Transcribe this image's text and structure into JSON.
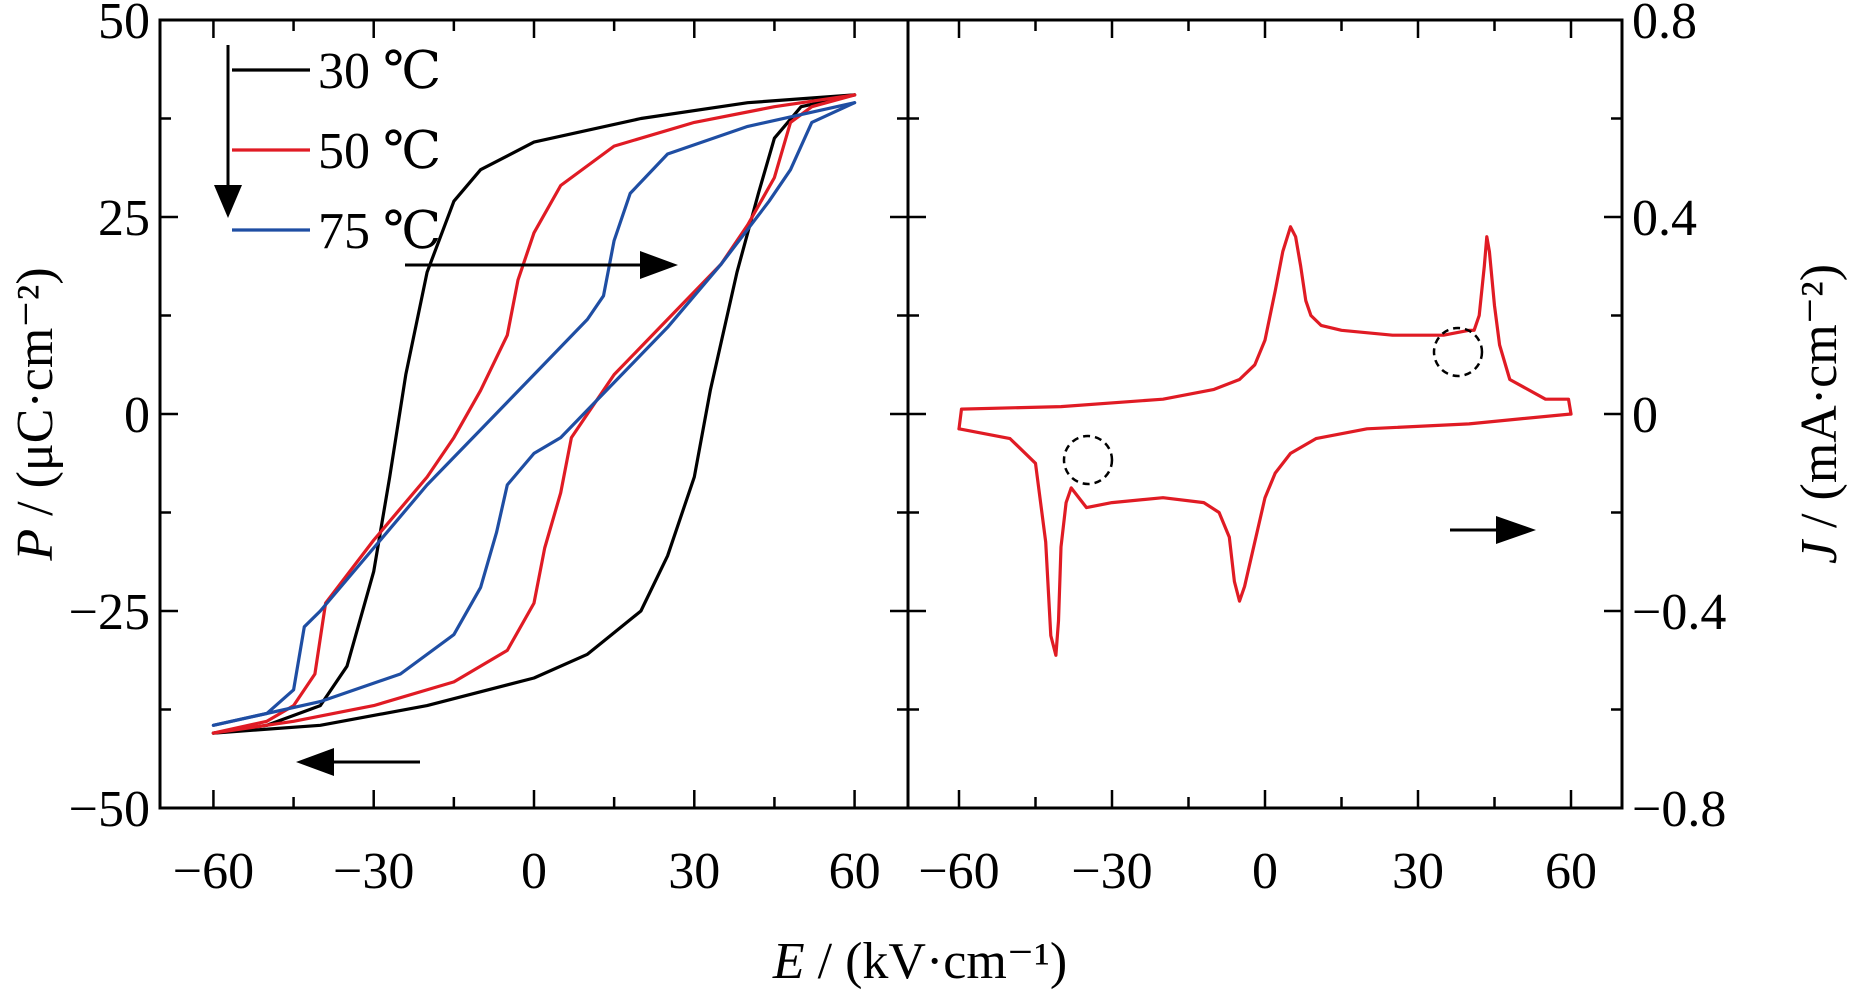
{
  "chart_data": [
    {
      "type": "line",
      "panel": "left",
      "xlabel_var": "E",
      "xlabel_unit": " / (kV·cm⁻¹)",
      "ylabel_var": "P",
      "ylabel_unit": " / (μC·cm⁻²)",
      "xlim": [
        -70,
        70
      ],
      "ylim": [
        -50,
        50
      ],
      "x_ticks": [
        -60,
        -30,
        0,
        30,
        60
      ],
      "x_tick_labels": [
        "−60",
        "−30",
        "0",
        "30",
        "60"
      ],
      "y_ticks": [
        -50,
        -25,
        0,
        25,
        50
      ],
      "y_tick_labels": [
        "−50",
        "−25",
        "0",
        "25",
        "50"
      ],
      "grid": false,
      "legend_position": "top-left",
      "series": [
        {
          "name": "30 ℃",
          "color": "#000000",
          "upper": [
            [
              -60,
              -40.5
            ],
            [
              -50,
              -39.5
            ],
            [
              -40,
              -37
            ],
            [
              -35,
              -32
            ],
            [
              -30,
              -20
            ],
            [
              -27,
              -8
            ],
            [
              -24,
              5
            ],
            [
              -20,
              18
            ],
            [
              -15,
              27
            ],
            [
              -10,
              31
            ],
            [
              0,
              34.5
            ],
            [
              20,
              37.5
            ],
            [
              40,
              39.5
            ],
            [
              60,
              40.5
            ]
          ],
          "lower": [
            [
              60,
              40.5
            ],
            [
              50,
              39
            ],
            [
              45,
              35
            ],
            [
              42,
              28
            ],
            [
              38,
              18
            ],
            [
              33,
              3
            ],
            [
              30,
              -8
            ],
            [
              25,
              -18
            ],
            [
              20,
              -25
            ],
            [
              10,
              -30.5
            ],
            [
              0,
              -33.5
            ],
            [
              -20,
              -37
            ],
            [
              -40,
              -39.5
            ],
            [
              -60,
              -40.5
            ]
          ]
        },
        {
          "name": "50 ℃",
          "color": "#e01b24",
          "upper": [
            [
              -60,
              -40.5
            ],
            [
              -50,
              -39
            ],
            [
              -45,
              -37
            ],
            [
              -41,
              -33
            ],
            [
              -39,
              -24
            ],
            [
              -30,
              -16
            ],
            [
              -20,
              -8
            ],
            [
              -15,
              -3
            ],
            [
              -10,
              3
            ],
            [
              -5,
              10
            ],
            [
              -3,
              17
            ],
            [
              0,
              23
            ],
            [
              5,
              29
            ],
            [
              15,
              34
            ],
            [
              30,
              37
            ],
            [
              45,
              39
            ],
            [
              60,
              40.5
            ]
          ],
          "lower": [
            [
              60,
              40.5
            ],
            [
              52,
              39
            ],
            [
              48,
              37
            ],
            [
              45,
              30
            ],
            [
              40,
              24
            ],
            [
              35,
              19
            ],
            [
              25,
              12
            ],
            [
              15,
              5
            ],
            [
              10,
              0
            ],
            [
              7,
              -3
            ],
            [
              5,
              -10
            ],
            [
              2,
              -17
            ],
            [
              0,
              -24
            ],
            [
              -5,
              -30
            ],
            [
              -15,
              -34
            ],
            [
              -30,
              -37
            ],
            [
              -45,
              -39
            ],
            [
              -60,
              -40.5
            ]
          ]
        },
        {
          "name": "75 ℃",
          "color": "#1f4ea3",
          "upper": [
            [
              -60,
              -39.5
            ],
            [
              -50,
              -38
            ],
            [
              -45,
              -35
            ],
            [
              -43,
              -27
            ],
            [
              -40,
              -25
            ],
            [
              -30,
              -17
            ],
            [
              -20,
              -9
            ],
            [
              -10,
              -2
            ],
            [
              0,
              5
            ],
            [
              10,
              12
            ],
            [
              13,
              15
            ],
            [
              15,
              22
            ],
            [
              18,
              28
            ],
            [
              25,
              33
            ],
            [
              40,
              36.5
            ],
            [
              60,
              39.5
            ]
          ],
          "lower": [
            [
              60,
              39.5
            ],
            [
              52,
              37
            ],
            [
              48,
              31
            ],
            [
              44,
              27
            ],
            [
              35,
              19
            ],
            [
              25,
              11
            ],
            [
              15,
              4
            ],
            [
              5,
              -3
            ],
            [
              0,
              -5
            ],
            [
              -5,
              -9
            ],
            [
              -7,
              -15
            ],
            [
              -10,
              -22
            ],
            [
              -15,
              -28
            ],
            [
              -25,
              -33
            ],
            [
              -40,
              -36.5
            ],
            [
              -60,
              -39.5
            ]
          ]
        }
      ]
    },
    {
      "type": "line",
      "panel": "right",
      "ylabel_var": "J",
      "ylabel_unit": " / (mA·cm⁻²)",
      "xlim": [
        -70,
        70
      ],
      "ylim": [
        -0.8,
        0.8
      ],
      "x_ticks": [
        -60,
        -30,
        0,
        30,
        60
      ],
      "x_tick_labels": [
        "−60",
        "−30",
        "0",
        "30",
        "60"
      ],
      "y_ticks": [
        -0.8,
        -0.4,
        0,
        0.4,
        0.8
      ],
      "y_tick_labels": [
        "−0.8",
        "−0.4",
        "0",
        "0.4",
        "0.8"
      ],
      "grid": false,
      "series": [
        {
          "name": "50 ℃",
          "color": "#e01b24",
          "upper": [
            [
              -60,
              -0.03
            ],
            [
              -59.5,
              0.01
            ],
            [
              -40,
              0.015
            ],
            [
              -20,
              0.03
            ],
            [
              -10,
              0.05
            ],
            [
              -5,
              0.07
            ],
            [
              -2,
              0.1
            ],
            [
              0,
              0.15
            ],
            [
              2,
              0.25
            ],
            [
              3.5,
              0.33
            ],
            [
              5,
              0.38
            ],
            [
              6,
              0.36
            ],
            [
              7,
              0.3
            ],
            [
              8,
              0.23
            ],
            [
              9,
              0.2
            ],
            [
              11,
              0.18
            ],
            [
              15,
              0.17
            ],
            [
              25,
              0.16
            ],
            [
              35,
              0.16
            ],
            [
              40,
              0.17
            ],
            [
              41,
              0.17
            ],
            [
              42,
              0.2
            ],
            [
              43,
              0.3
            ],
            [
              43.5,
              0.36
            ],
            [
              44,
              0.33
            ],
            [
              45,
              0.22
            ],
            [
              46,
              0.14
            ],
            [
              48,
              0.07
            ],
            [
              55,
              0.03
            ],
            [
              59.5,
              0.03
            ],
            [
              60,
              0.0
            ]
          ],
          "lower": [
            [
              60,
              0.0
            ],
            [
              50,
              -0.01
            ],
            [
              40,
              -0.02
            ],
            [
              20,
              -0.03
            ],
            [
              10,
              -0.05
            ],
            [
              5,
              -0.08
            ],
            [
              2,
              -0.12
            ],
            [
              0,
              -0.17
            ],
            [
              -2,
              -0.26
            ],
            [
              -4,
              -0.35
            ],
            [
              -5,
              -0.38
            ],
            [
              -6,
              -0.34
            ],
            [
              -7,
              -0.25
            ],
            [
              -9,
              -0.2
            ],
            [
              -12,
              -0.18
            ],
            [
              -20,
              -0.17
            ],
            [
              -30,
              -0.18
            ],
            [
              -35,
              -0.19
            ],
            [
              -38,
              -0.15
            ],
            [
              -39,
              -0.18
            ],
            [
              -40,
              -0.27
            ],
            [
              -40.5,
              -0.42
            ],
            [
              -41,
              -0.49
            ],
            [
              -42,
              -0.45
            ],
            [
              -43,
              -0.26
            ],
            [
              -45,
              -0.1
            ],
            [
              -50,
              -0.05
            ],
            [
              -60,
              -0.03
            ]
          ]
        }
      ]
    }
  ]
}
